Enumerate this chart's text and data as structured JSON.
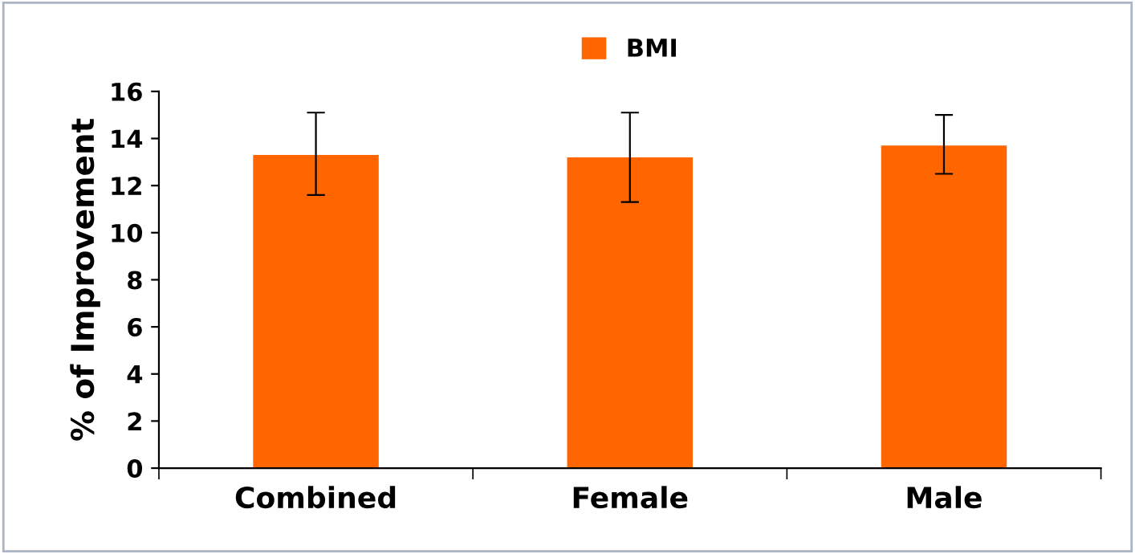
{
  "chart_data": {
    "type": "bar",
    "categories": [
      "Combined",
      "Female",
      "Male"
    ],
    "series": [
      {
        "name": "BMI",
        "color": "#ff6600",
        "values": [
          13.3,
          13.2,
          13.7
        ],
        "errors": [
          [
            11.6,
            15.1
          ],
          [
            11.3,
            15.1
          ],
          [
            12.5,
            15.0
          ]
        ]
      }
    ],
    "ylabel": "% of Improvement",
    "ylim": [
      0,
      16
    ],
    "yticks": [
      0,
      2,
      4,
      6,
      8,
      10,
      12,
      14,
      16
    ],
    "grid": false,
    "legend": "top"
  }
}
